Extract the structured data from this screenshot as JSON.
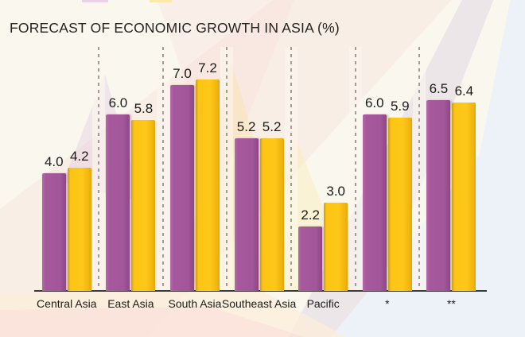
{
  "title": "FORECAST OF ECONOMIC GROWTH IN ASIA (%)",
  "legend": {
    "note": "two legend color swatches cropped at the top edge of the image",
    "swatches": [
      {
        "name": "purple-series-swatch",
        "color": "#a6589c"
      },
      {
        "name": "yellow-series-swatch",
        "color": "#fdc513"
      }
    ]
  },
  "colors": {
    "series_purple": "#a6589c",
    "series_yellow": "#fdc513",
    "baseline": "#3a3a38",
    "separator": "#a09b94",
    "background": "#faf7ee",
    "background_blue_corner": "#edf1f8",
    "text": "#1c1b18"
  },
  "chart_data": {
    "type": "bar",
    "title": "FORECAST OF ECONOMIC GROWTH IN ASIA (%)",
    "categories": [
      "Central Asia",
      "East Asia",
      "South Asia",
      "Southeast Asia",
      "Pacific",
      "*",
      "**"
    ],
    "series": [
      {
        "name": "purple",
        "color": "#a6589c",
        "values": [
          4.0,
          6.0,
          7.0,
          5.2,
          2.2,
          6.0,
          6.5
        ]
      },
      {
        "name": "yellow",
        "color": "#fdc513",
        "values": [
          4.2,
          5.8,
          7.2,
          5.2,
          3.0,
          5.9,
          6.4
        ]
      }
    ],
    "value_labels": [
      [
        "4.0",
        "4.2"
      ],
      [
        "6.0",
        "5.8"
      ],
      [
        "7.0",
        "7.2"
      ],
      [
        "5.2",
        "5.2"
      ],
      [
        "2.2",
        "3.0"
      ],
      [
        "6.0",
        "5.9"
      ],
      [
        "6.5",
        "6.4"
      ]
    ],
    "xlabel": "",
    "ylabel": "",
    "ylim": [
      0,
      7.8
    ],
    "grid": "dashed vertical separators between category groups",
    "legend_position": "top (cropped out of frame)"
  }
}
